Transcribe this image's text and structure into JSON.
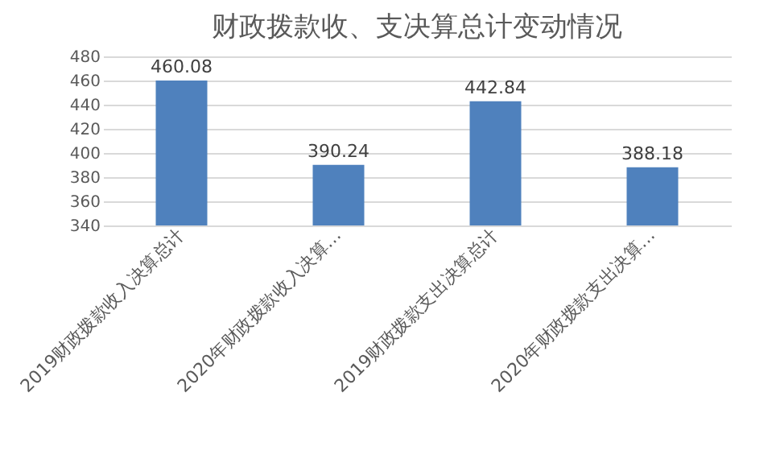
{
  "chart_data": {
    "type": "bar",
    "title": "财政拨款收、支决算总计变动情况",
    "categories": [
      "2019财政拨款收入决算总计",
      "2020年财政拨款收入决算…",
      "2019财政拨款支出决算总计",
      "2020年财政拨款支出决算…"
    ],
    "values": [
      460.08,
      390.24,
      442.84,
      388.18
    ],
    "color": "#4f81bd",
    "ylim": [
      340,
      480
    ],
    "yticks": [
      340,
      360,
      380,
      400,
      420,
      440,
      460,
      480
    ],
    "grid": "y",
    "data_labels": true
  }
}
